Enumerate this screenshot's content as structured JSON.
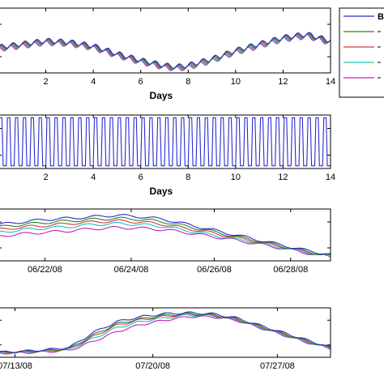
{
  "chart_data": [
    {
      "type": "line",
      "xlabel": "Days",
      "x_ticks": [
        "2",
        "4",
        "6",
        "8",
        "10",
        "12",
        "14"
      ],
      "xlim": [
        0,
        14
      ],
      "ylim": [
        0,
        1
      ],
      "series_colors": [
        "#2b2bd0",
        "#1e8a1e",
        "#d43a3a",
        "#20c0c0",
        "#c020c0"
      ],
      "series": [
        {
          "x": [
            0,
            1,
            2,
            3,
            4,
            5,
            6,
            7,
            7.5,
            8,
            9,
            10,
            11,
            12,
            13,
            14
          ],
          "values": [
            0.4,
            0.45,
            0.5,
            0.48,
            0.42,
            0.3,
            0.2,
            0.12,
            0.1,
            0.12,
            0.22,
            0.35,
            0.45,
            0.55,
            0.6,
            0.5
          ]
        }
      ],
      "legend": {
        "position": "right",
        "entries": [
          "B"
        ]
      }
    },
    {
      "type": "line",
      "xlabel": "Days",
      "x_ticks": [
        "2",
        "4",
        "6",
        "8",
        "10",
        "12",
        "14"
      ],
      "xlim": [
        0,
        14
      ],
      "ylim": [
        0,
        1
      ],
      "series_colors": [
        "#2b2bd0"
      ],
      "cycles_per_day": 3,
      "series": [
        {
          "high": 0.95,
          "low": 0.05
        }
      ]
    },
    {
      "type": "line",
      "x_ticks": [
        "06/22/08",
        "06/24/08",
        "06/26/08",
        "06/28/08"
      ],
      "ylim": [
        0,
        1
      ],
      "series_colors": [
        "#2b2bd0",
        "#1e8a1e",
        "#d43a3a",
        "#20c0c0",
        "#c020c0"
      ],
      "series": [
        {
          "values": [
            0.7,
            0.75,
            0.8,
            0.82,
            0.85,
            0.88,
            0.85,
            0.8,
            0.7,
            0.6,
            0.5,
            0.4,
            0.3,
            0.2,
            0.12
          ]
        },
        {
          "values": [
            0.65,
            0.7,
            0.74,
            0.77,
            0.8,
            0.82,
            0.8,
            0.75,
            0.66,
            0.57,
            0.47,
            0.38,
            0.28,
            0.18,
            0.1
          ]
        },
        {
          "values": [
            0.6,
            0.65,
            0.68,
            0.72,
            0.75,
            0.77,
            0.75,
            0.7,
            0.62,
            0.54,
            0.45,
            0.36,
            0.27,
            0.17,
            0.1
          ]
        },
        {
          "values": [
            0.55,
            0.6,
            0.63,
            0.66,
            0.7,
            0.72,
            0.7,
            0.66,
            0.58,
            0.5,
            0.42,
            0.34,
            0.25,
            0.16,
            0.09
          ]
        },
        {
          "values": [
            0.48,
            0.52,
            0.55,
            0.58,
            0.62,
            0.64,
            0.63,
            0.6,
            0.54,
            0.47,
            0.4,
            0.32,
            0.24,
            0.15,
            0.08
          ]
        }
      ]
    },
    {
      "type": "line",
      "x_ticks": [
        "07/13/08",
        "07/20/08",
        "07/27/08"
      ],
      "ylim": [
        0,
        1
      ],
      "series_colors": [
        "#2b2bd0",
        "#1e8a1e",
        "#d43a3a",
        "#20c0c0",
        "#c020c0"
      ],
      "series": [
        {
          "values": [
            0.1,
            0.12,
            0.15,
            0.2,
            0.5,
            0.72,
            0.82,
            0.88,
            0.9,
            0.88,
            0.8,
            0.65,
            0.5,
            0.35,
            0.2
          ]
        },
        {
          "values": [
            0.1,
            0.11,
            0.14,
            0.18,
            0.45,
            0.68,
            0.78,
            0.85,
            0.88,
            0.86,
            0.78,
            0.63,
            0.48,
            0.33,
            0.19
          ]
        },
        {
          "values": [
            0.1,
            0.11,
            0.13,
            0.17,
            0.42,
            0.65,
            0.76,
            0.83,
            0.87,
            0.85,
            0.77,
            0.62,
            0.47,
            0.32,
            0.19
          ]
        },
        {
          "values": [
            0.09,
            0.1,
            0.12,
            0.16,
            0.38,
            0.6,
            0.72,
            0.8,
            0.85,
            0.84,
            0.76,
            0.61,
            0.46,
            0.31,
            0.18
          ]
        },
        {
          "values": [
            0.08,
            0.09,
            0.11,
            0.14,
            0.32,
            0.52,
            0.66,
            0.75,
            0.82,
            0.82,
            0.75,
            0.6,
            0.45,
            0.3,
            0.18
          ]
        }
      ]
    }
  ]
}
